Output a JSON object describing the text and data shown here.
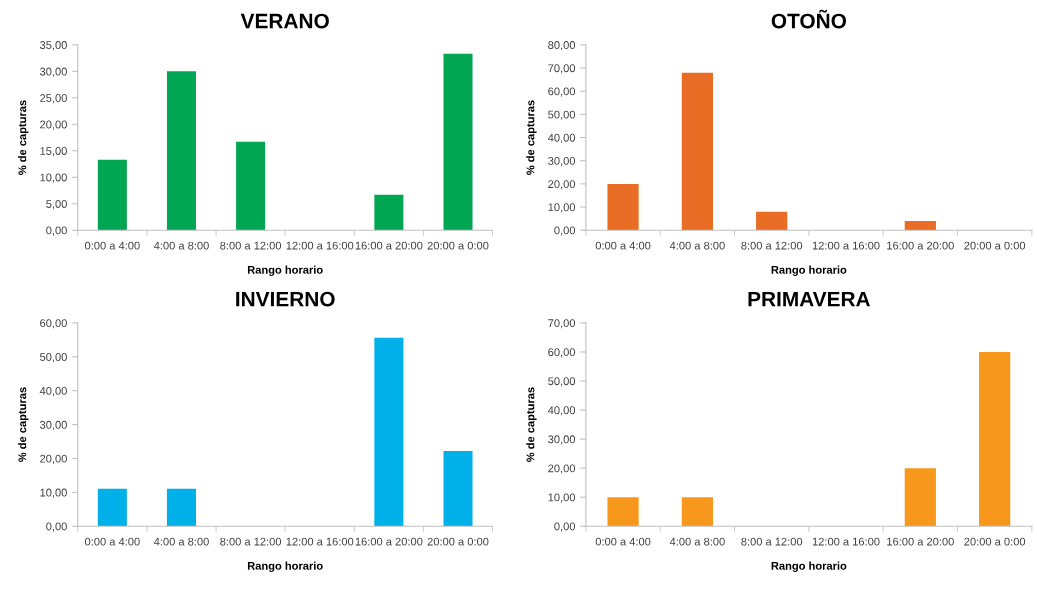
{
  "chart_data": [
    {
      "type": "bar",
      "title": "VERANO",
      "xlabel": "Rango horario",
      "ylabel": "% de capturas",
      "categories": [
        "0:00 a 4:00",
        "4:00 a 8:00",
        "8:00 a 12:00",
        "12:00 a 16:00",
        "16:00 a 20:00",
        "20:00 a 0:00"
      ],
      "values": [
        13.3,
        30,
        16.7,
        0,
        6.7,
        33.3
      ],
      "color": "#00a651",
      "ylim": [
        0,
        35
      ],
      "yticks": [
        {
          "value": 0,
          "label": "0,00"
        },
        {
          "value": 5,
          "label": "5,00"
        },
        {
          "value": 10,
          "label": "10,00"
        },
        {
          "value": 15,
          "label": "15,00"
        },
        {
          "value": 20,
          "label": "20,00"
        },
        {
          "value": 25,
          "label": "25,00"
        },
        {
          "value": 30,
          "label": "30,00"
        },
        {
          "value": 35,
          "label": "35,00"
        }
      ]
    },
    {
      "type": "bar",
      "title": "OTOÑO",
      "xlabel": "Rango horario",
      "ylabel": "% de capturas",
      "categories": [
        "0:00 a 4:00",
        "4:00 a 8:00",
        "8:00 a 12:00",
        "12:00 a 16:00",
        "16:00 a 20:00",
        "20:00 a 0:00"
      ],
      "values": [
        20,
        68,
        8,
        0,
        4,
        0
      ],
      "color": "#e96d24",
      "ylim": [
        0,
        80
      ],
      "yticks": [
        {
          "value": 0,
          "label": "0,00"
        },
        {
          "value": 10,
          "label": "10,00"
        },
        {
          "value": 20,
          "label": "20,00"
        },
        {
          "value": 30,
          "label": "30,00"
        },
        {
          "value": 40,
          "label": "40,00"
        },
        {
          "value": 50,
          "label": "50,00"
        },
        {
          "value": 60,
          "label": "60,00"
        },
        {
          "value": 70,
          "label": "70,00"
        },
        {
          "value": 80,
          "label": "80,00"
        }
      ]
    },
    {
      "type": "bar",
      "title": "INVIERNO",
      "xlabel": "Rango horario",
      "ylabel": "% de capturas",
      "categories": [
        "0:00 a 4:00",
        "4:00 a 8:00",
        "8:00 a 12:00",
        "12:00 a 16:00",
        "16:00 a 20:00",
        "20:00 a 0:00"
      ],
      "values": [
        11.1,
        11.1,
        0,
        0,
        55.6,
        22.2
      ],
      "color": "#00b0e8",
      "ylim": [
        0,
        60
      ],
      "yticks": [
        {
          "value": 0,
          "label": "0,00"
        },
        {
          "value": 10,
          "label": "10,00"
        },
        {
          "value": 20,
          "label": "20,00"
        },
        {
          "value": 30,
          "label": "30,00"
        },
        {
          "value": 40,
          "label": "40,00"
        },
        {
          "value": 50,
          "label": "50,00"
        },
        {
          "value": 60,
          "label": "60,00"
        }
      ]
    },
    {
      "type": "bar",
      "title": "PRIMAVERA",
      "xlabel": "Rango horario",
      "ylabel": "% de capturas",
      "categories": [
        "0:00 a 4:00",
        "4:00 a 8:00",
        "8:00 a 12:00",
        "12:00 a 16:00",
        "16:00 a 20:00",
        "20:00 a 0:00"
      ],
      "values": [
        10,
        10,
        0,
        0,
        20,
        60
      ],
      "color": "#f7981d",
      "ylim": [
        0,
        70
      ],
      "yticks": [
        {
          "value": 0,
          "label": "0,00"
        },
        {
          "value": 10,
          "label": "10,00"
        },
        {
          "value": 20,
          "label": "20,00"
        },
        {
          "value": 30,
          "label": "30,00"
        },
        {
          "value": 40,
          "label": "40,00"
        },
        {
          "value": 50,
          "label": "50,00"
        },
        {
          "value": 60,
          "label": "60,00"
        },
        {
          "value": 70,
          "label": "70,00"
        }
      ]
    }
  ]
}
